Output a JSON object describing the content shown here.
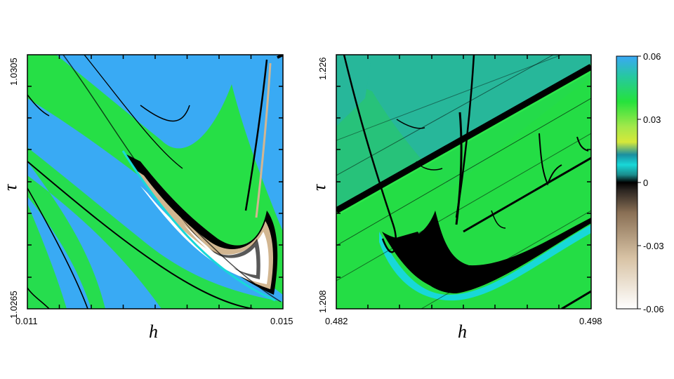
{
  "chart_data": [
    {
      "type": "heatmap",
      "xlabel": "h",
      "ylabel": "τ",
      "xlim": [
        0.011,
        0.015
      ],
      "ylim": [
        1.0265,
        1.0305
      ],
      "x_tick_labels": [
        "0.011",
        "0.015"
      ],
      "y_tick_labels": [
        "1.0305",
        "1.0265"
      ]
    },
    {
      "type": "heatmap",
      "xlabel": "h",
      "ylabel": "τ",
      "xlim": [
        0.482,
        0.498
      ],
      "ylim": [
        1.208,
        1.226
      ],
      "x_tick_labels": [
        "0.482",
        "0.498"
      ],
      "y_tick_labels": [
        "1.226",
        "1.208"
      ]
    }
  ],
  "colorbar": {
    "range": [
      -0.06,
      0.06
    ],
    "tick_labels": [
      "0.06",
      "0.03",
      "0",
      "-0.03",
      "-0.06"
    ],
    "colors": {
      "max": "#3aa8f5",
      "high": "#2ee84a",
      "mid_high": "#d6e83a",
      "near_zero_pos": "#1ad6d0",
      "zero": "#000000",
      "neg": "#c2a07a",
      "min": "#ffffff"
    }
  },
  "colors": {
    "blue": "#39aaf4",
    "green": "#25e23c",
    "teal": "#27b79a",
    "cyan": "#18d8d8",
    "black": "#000000",
    "tan": "#d2b691",
    "white": "#ffffff"
  }
}
